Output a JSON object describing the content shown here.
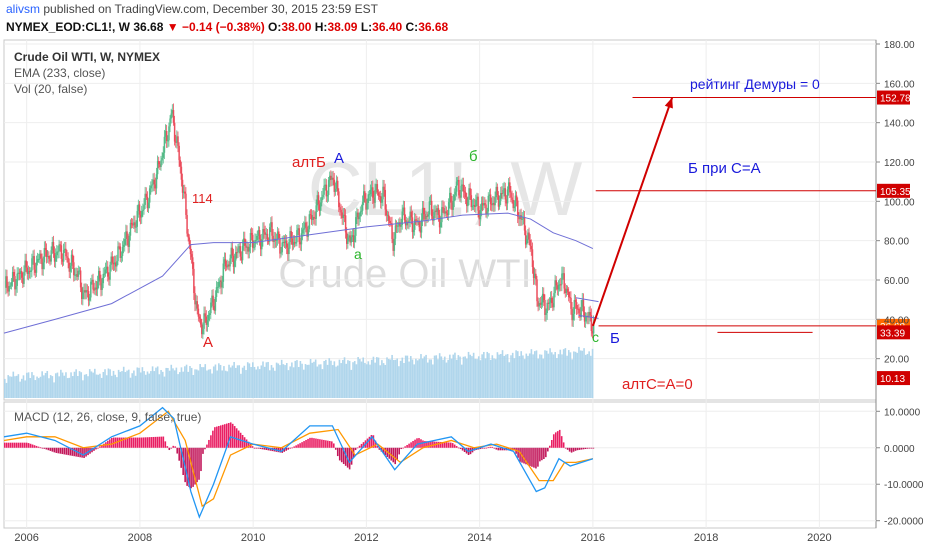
{
  "header": {
    "author": "alivsm",
    "published": "published on TradingView.com, December 30, 2015 23:59 EST",
    "symbol": "NYMEX_EOD:CL1!, W",
    "last": "36.68",
    "change": "−0.14 (−0.38%)",
    "o_label": "O:",
    "o": "38.00",
    "h_label": "H:",
    "h": "38.09",
    "l_label": "L:",
    "l": "36.40",
    "c_label": "C:",
    "c": "36.68"
  },
  "legend": {
    "title": "Crude Oil WTI, W, NYMEX",
    "ema": "EMA (233, close)",
    "vol": "Vol (20, false)",
    "macd": "MACD (12, 26, close, 9, false, true)"
  },
  "watermark": {
    "symbol": "CL1!, W",
    "name": "Crude Oil WTI"
  },
  "annotations": {
    "a_big": "A",
    "v114": "114",
    "altB": "алтБ",
    "A2": "A",
    "a_small": "а",
    "b_small": "б",
    "c_small": "с",
    "B_big": "Б",
    "demury": "рейтинг Демуры = 0",
    "b_pri": "Б  при С=А",
    "altC": "алтС=А=0"
  },
  "colors": {
    "up": "#53b987",
    "down": "#eb4d5c",
    "ema": "#6f6fd6",
    "accent": "#d00000",
    "volume": "#a7d2ea",
    "macd": "#2196f3",
    "signal": "#ff9800",
    "hist_pos": "#e91e63"
  },
  "chart_data": [
    {
      "type": "candlestick",
      "title": "Crude Oil WTI, W, NYMEX",
      "x_ticks": [
        "2006",
        "2008",
        "2010",
        "2012",
        "2014",
        "2016",
        "2018",
        "2020"
      ],
      "xlim": [
        2005.6,
        2021.0
      ],
      "ylim": [
        0,
        180
      ],
      "y_ticks": [
        "180.00",
        "160.00",
        "140.00",
        "120.00",
        "100.00",
        "80.00",
        "60.00",
        "40.00",
        "20.00"
      ],
      "y_tick_values": [
        180,
        160,
        140,
        120,
        100,
        80,
        60,
        40,
        20
      ],
      "price_path": [
        [
          2005.6,
          56
        ],
        [
          2005.9,
          63
        ],
        [
          2006.3,
          72
        ],
        [
          2006.6,
          75
        ],
        [
          2006.9,
          62
        ],
        [
          2007.0,
          52
        ],
        [
          2007.3,
          60
        ],
        [
          2007.6,
          72
        ],
        [
          2007.9,
          90
        ],
        [
          2008.1,
          100
        ],
        [
          2008.3,
          115
        ],
        [
          2008.5,
          138
        ],
        [
          2008.55,
          145
        ],
        [
          2008.7,
          118
        ],
        [
          2008.9,
          68
        ],
        [
          2009.0,
          42
        ],
        [
          2009.1,
          36
        ],
        [
          2009.3,
          50
        ],
        [
          2009.5,
          68
        ],
        [
          2009.8,
          76
        ],
        [
          2010.0,
          80
        ],
        [
          2010.3,
          84
        ],
        [
          2010.5,
          77
        ],
        [
          2010.8,
          82
        ],
        [
          2011.0,
          90
        ],
        [
          2011.3,
          108
        ],
        [
          2011.4,
          112
        ],
        [
          2011.6,
          88
        ],
        [
          2011.7,
          78
        ],
        [
          2011.9,
          98
        ],
        [
          2012.1,
          105
        ],
        [
          2012.3,
          102
        ],
        [
          2012.45,
          80
        ],
        [
          2012.6,
          92
        ],
        [
          2012.9,
          88
        ],
        [
          2013.1,
          96
        ],
        [
          2013.3,
          92
        ],
        [
          2013.5,
          100
        ],
        [
          2013.6,
          108
        ],
        [
          2013.8,
          101
        ],
        [
          2014.0,
          96
        ],
        [
          2014.3,
          102
        ],
        [
          2014.5,
          105
        ],
        [
          2014.7,
          93
        ],
        [
          2014.9,
          75
        ],
        [
          2015.0,
          50
        ],
        [
          2015.2,
          46
        ],
        [
          2015.4,
          60
        ],
        [
          2015.5,
          58
        ],
        [
          2015.6,
          45
        ],
        [
          2015.7,
          46
        ],
        [
          2015.85,
          43
        ],
        [
          2016.0,
          36.68
        ]
      ],
      "ema_233": [
        [
          2005.6,
          33
        ],
        [
          2006.5,
          40
        ],
        [
          2007.5,
          48
        ],
        [
          2008.4,
          62
        ],
        [
          2008.9,
          78
        ],
        [
          2009.3,
          79
        ],
        [
          2010.0,
          79
        ],
        [
          2011.0,
          83
        ],
        [
          2012.0,
          87
        ],
        [
          2013.0,
          90
        ],
        [
          2013.7,
          93
        ],
        [
          2014.5,
          94
        ],
        [
          2014.9,
          91
        ],
        [
          2015.3,
          84
        ],
        [
          2015.7,
          80
        ],
        [
          2016.0,
          76
        ]
      ],
      "price_levels": [
        {
          "label": "152.78",
          "value": 152.78
        },
        {
          "label": "105.35",
          "value": 105.35
        },
        {
          "label": "36.68",
          "value": 36.68
        },
        {
          "label": "33.39",
          "value": 33.39
        },
        {
          "label": "10.13",
          "value": 10.13
        }
      ],
      "projection": [
        [
          2016.0,
          36.68
        ],
        [
          2017.4,
          152.78
        ]
      ]
    },
    {
      "type": "macd",
      "title": "MACD (12, 26, close, 9, false, true)",
      "ylim": [
        -22,
        12
      ],
      "y_ticks": [
        "10.0000",
        "0.0000",
        "-10.0000",
        "-20.0000"
      ],
      "y_tick_values": [
        10,
        0,
        -10,
        -20
      ],
      "macd": [
        [
          2005.6,
          3
        ],
        [
          2006.0,
          4
        ],
        [
          2006.5,
          2
        ],
        [
          2007.0,
          -2
        ],
        [
          2007.5,
          3
        ],
        [
          2008.0,
          6
        ],
        [
          2008.4,
          11
        ],
        [
          2008.6,
          8
        ],
        [
          2008.9,
          -12
        ],
        [
          2009.05,
          -19
        ],
        [
          2009.3,
          -10
        ],
        [
          2009.6,
          3
        ],
        [
          2010.0,
          1
        ],
        [
          2010.5,
          -1
        ],
        [
          2011.0,
          6
        ],
        [
          2011.4,
          6
        ],
        [
          2011.7,
          -4
        ],
        [
          2012.1,
          3
        ],
        [
          2012.5,
          -6
        ],
        [
          2012.9,
          1
        ],
        [
          2013.5,
          3
        ],
        [
          2013.8,
          -1
        ],
        [
          2014.2,
          1
        ],
        [
          2014.6,
          -1
        ],
        [
          2015.0,
          -12
        ],
        [
          2015.15,
          -11
        ],
        [
          2015.4,
          -3
        ],
        [
          2015.6,
          -5
        ],
        [
          2016.0,
          -3
        ]
      ],
      "signal": [
        [
          2005.6,
          2
        ],
        [
          2006.0,
          3
        ],
        [
          2006.5,
          3
        ],
        [
          2007.0,
          0
        ],
        [
          2007.5,
          1
        ],
        [
          2008.0,
          4
        ],
        [
          2008.5,
          10
        ],
        [
          2008.8,
          2
        ],
        [
          2009.1,
          -16
        ],
        [
          2009.3,
          -14
        ],
        [
          2009.6,
          -2
        ],
        [
          2010.0,
          1
        ],
        [
          2010.5,
          0
        ],
        [
          2011.0,
          4
        ],
        [
          2011.5,
          5
        ],
        [
          2011.8,
          -2
        ],
        [
          2012.2,
          1
        ],
        [
          2012.6,
          -4
        ],
        [
          2013.0,
          0
        ],
        [
          2013.5,
          2
        ],
        [
          2013.9,
          0
        ],
        [
          2014.3,
          1
        ],
        [
          2014.7,
          -1
        ],
        [
          2015.05,
          -9
        ],
        [
          2015.3,
          -9
        ],
        [
          2015.5,
          -4
        ],
        [
          2015.7,
          -4
        ],
        [
          2016.0,
          -3
        ]
      ]
    }
  ]
}
